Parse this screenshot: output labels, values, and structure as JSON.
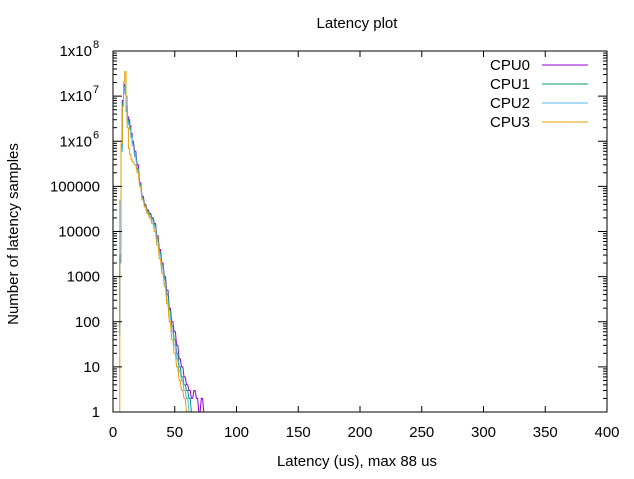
{
  "chart_data": {
    "type": "line",
    "title": "Latency plot",
    "xlabel": "Latency (us), max 88 us",
    "ylabel": "Number of latency samples",
    "xlim": [
      0,
      400
    ],
    "ylim": [
      1,
      100000000
    ],
    "yscale": "log",
    "grid": false,
    "legend_position": "top-right",
    "x_ticks": [
      0,
      50,
      100,
      150,
      200,
      250,
      300,
      350,
      400
    ],
    "x_tick_labels": [
      "0",
      "50",
      "100",
      "150",
      "200",
      "250",
      "300",
      "350",
      "400"
    ],
    "y_ticks": [
      1,
      10,
      100,
      1000,
      10000,
      100000,
      1000000,
      10000000,
      100000000
    ],
    "y_tick_labels": [
      {
        "base": "1",
        "sup": ""
      },
      {
        "base": "10",
        "sup": ""
      },
      {
        "base": "100",
        "sup": ""
      },
      {
        "base": "1000",
        "sup": ""
      },
      {
        "base": "10000",
        "sup": ""
      },
      {
        "base": "100000",
        "sup": ""
      },
      {
        "base": "1x10",
        "sup": "6"
      },
      {
        "base": "1x10",
        "sup": "7"
      },
      {
        "base": "1x10",
        "sup": "8"
      }
    ],
    "series": [
      {
        "name": "CPU0",
        "color": "#9400d3",
        "x": [
          5,
          6,
          7,
          8,
          9,
          10,
          11,
          12,
          13,
          14,
          15,
          16,
          18,
          20,
          22,
          24,
          26,
          28,
          30,
          32,
          34,
          36,
          38,
          40,
          42,
          44,
          46,
          48,
          50,
          52,
          54,
          56,
          58,
          60,
          62,
          64,
          66,
          68,
          70,
          72,
          74,
          76,
          78,
          80,
          82,
          85,
          88
        ],
        "y": [
          80,
          3000,
          800000,
          8000000,
          18000000,
          14000000,
          6000000,
          3500000,
          3000000,
          2200000,
          1500000,
          1000000,
          600000,
          300000,
          120000,
          60000,
          40000,
          30000,
          25000,
          20000,
          15000,
          8000,
          4000,
          2000,
          1000,
          500,
          200,
          100,
          60,
          30,
          15,
          10,
          6,
          4,
          3,
          2,
          3,
          2,
          1,
          2,
          1,
          1,
          1,
          1,
          1,
          1,
          1
        ]
      },
      {
        "name": "CPU1",
        "color": "#009e73",
        "x": [
          5,
          6,
          7,
          8,
          9,
          10,
          11,
          12,
          13,
          14,
          15,
          16,
          18,
          20,
          22,
          24,
          26,
          28,
          30,
          32,
          34,
          36,
          38,
          40,
          42,
          44,
          46,
          48,
          50,
          52,
          54,
          56,
          58,
          60,
          62,
          64,
          66
        ],
        "y": [
          60,
          2500,
          700000,
          7000000,
          17000000,
          12000000,
          5000000,
          3000000,
          2600000,
          2000000,
          1300000,
          900000,
          500000,
          250000,
          110000,
          55000,
          38000,
          28000,
          24000,
          19000,
          14000,
          7000,
          3500,
          1800,
          900,
          400,
          180,
          80,
          40,
          20,
          10,
          6,
          4,
          3,
          2,
          1,
          1
        ]
      },
      {
        "name": "CPU2",
        "color": "#56b4e9",
        "x": [
          5,
          6,
          7,
          8,
          9,
          10,
          11,
          12,
          13,
          14,
          15,
          16,
          18,
          20,
          22,
          24,
          26,
          28,
          30,
          32,
          34,
          36,
          38,
          40,
          42,
          44,
          46,
          48,
          50,
          52,
          54,
          56,
          58,
          60,
          62
        ],
        "y": [
          50,
          2000,
          600000,
          6000000,
          16000000,
          11000000,
          4500000,
          2600000,
          2300000,
          1800000,
          1200000,
          800000,
          450000,
          230000,
          100000,
          50000,
          35000,
          26000,
          22000,
          17000,
          12000,
          6000,
          3000,
          1500,
          700,
          300,
          130,
          60,
          30,
          15,
          8,
          5,
          3,
          2,
          1
        ]
      },
      {
        "name": "CPU3",
        "color": "#e69f00",
        "x": [
          5,
          6,
          7,
          8,
          9,
          10,
          11,
          12,
          13,
          14,
          15,
          16,
          18,
          20,
          22,
          24,
          26,
          28,
          30,
          32,
          34,
          36,
          38,
          40,
          42,
          44,
          46,
          48,
          50,
          52,
          54,
          56,
          58,
          60,
          62
        ],
        "y": [
          1,
          50000,
          900000,
          6000000,
          20000000,
          35000000,
          10000000,
          2000000,
          700000,
          500000,
          400000,
          350000,
          300000,
          200000,
          100000,
          50000,
          35000,
          25000,
          20000,
          15000,
          10000,
          5000,
          2500,
          1200,
          600,
          250,
          100,
          40,
          20,
          10,
          5,
          3,
          2,
          1,
          1
        ]
      }
    ]
  }
}
